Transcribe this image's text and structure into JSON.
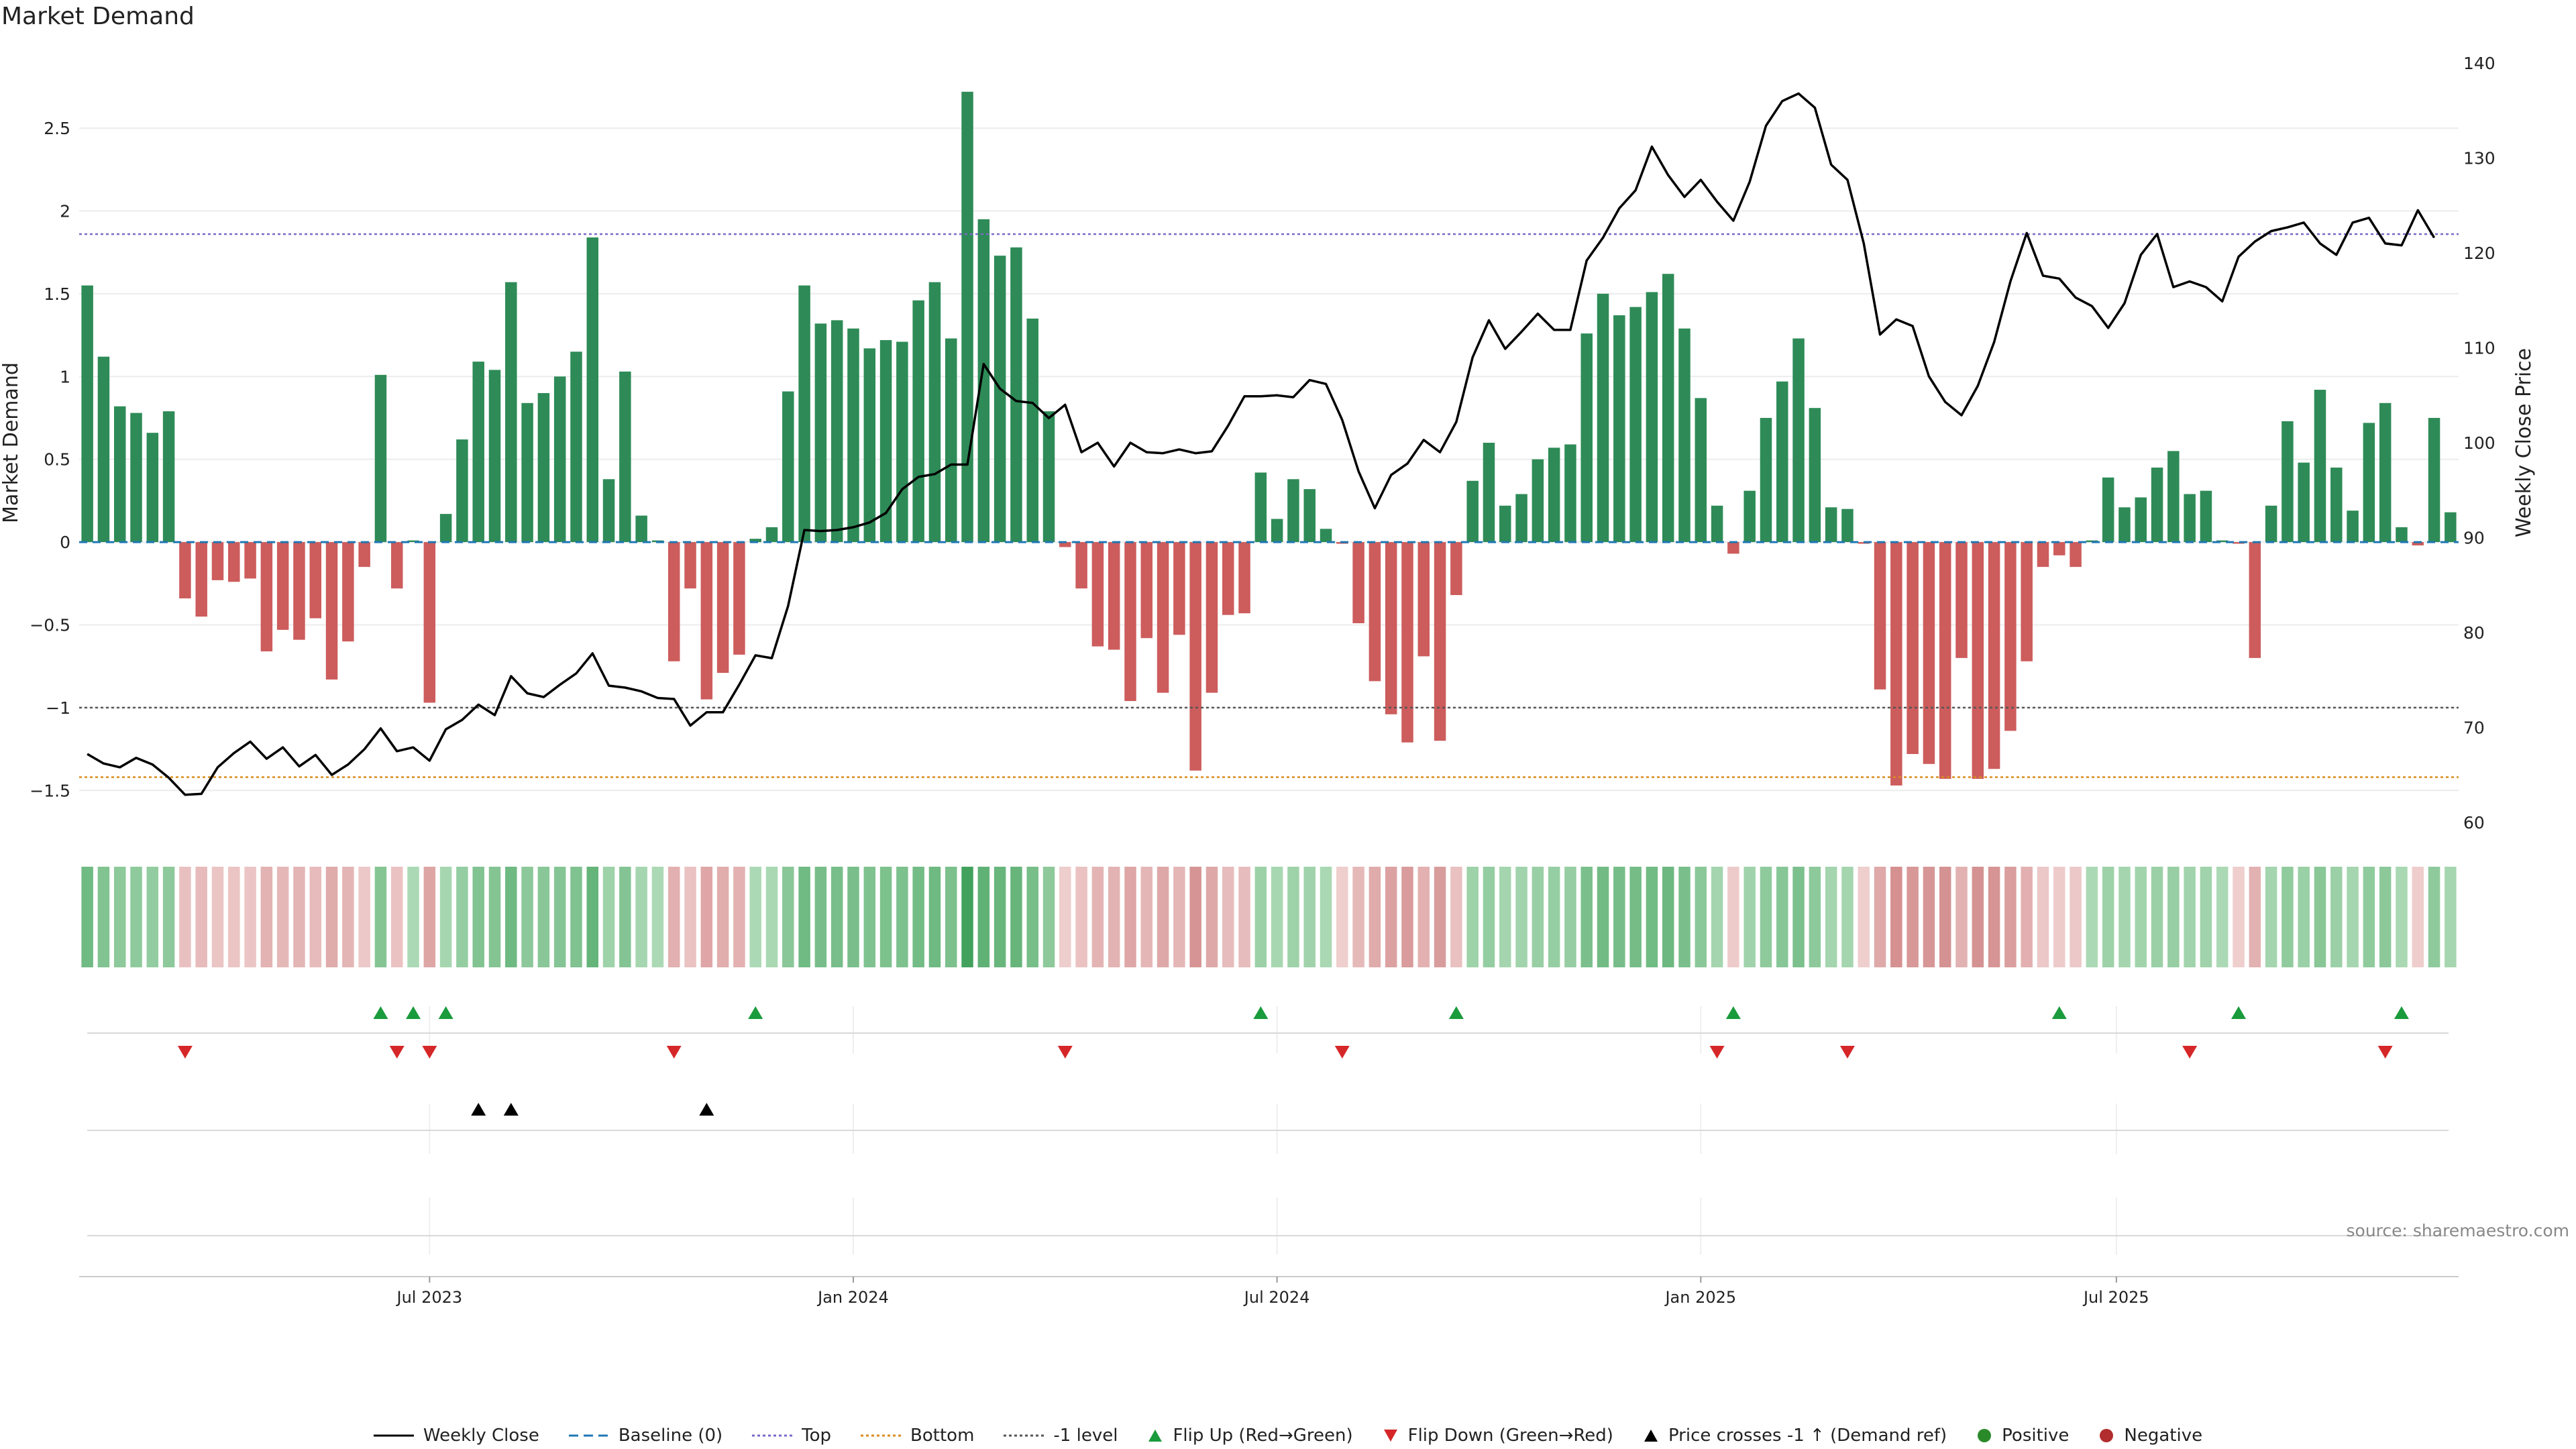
{
  "chart_data": {
    "type": "bar",
    "title": "Market Demand",
    "ylabel": "Market Demand",
    "y2label": "Weekly Close Price",
    "ylim": [
      -1.75,
      2.95
    ],
    "y2lim": [
      59,
      141
    ],
    "yticks": [
      -1.5,
      -1,
      -0.5,
      0,
      0.5,
      1,
      1.5,
      2,
      2.5
    ],
    "yticklabels": [
      "−1.5",
      "−1",
      "−0.5",
      "0",
      "0.5",
      "1",
      "1.5",
      "2",
      "2.5"
    ],
    "y2ticks": [
      60,
      70,
      80,
      90,
      100,
      110,
      120,
      130,
      140
    ],
    "xticklabels": [
      "Jul 2023",
      "Jan 2024",
      "Jul 2024",
      "Jan 2025",
      "Jul 2025"
    ],
    "xtick_positions": [
      21.5,
      47.5,
      73.5,
      99.5,
      125
    ],
    "reference_lines": {
      "top": 1.86,
      "bottom": -1.42,
      "minus_one": -1
    },
    "colors": {
      "positive": "#2e8b57",
      "negative": "#cd5c5c",
      "close": "#000000",
      "top": "#7b68c8",
      "bottom": "#d98c1e",
      "level": "#555555",
      "baseline": "#1f77b4",
      "flip_up": "#1a9b3c",
      "flip_down": "#d62728",
      "cross": "#000000"
    },
    "demand": [
      1.55,
      1.12,
      0.82,
      0.78,
      0.66,
      0.79,
      -0.34,
      -0.45,
      -0.23,
      -0.24,
      -0.22,
      -0.66,
      -0.53,
      -0.59,
      -0.46,
      -0.83,
      -0.6,
      -0.15,
      1.01,
      -0.28,
      0.01,
      -0.97,
      0.17,
      0.62,
      1.09,
      1.04,
      1.57,
      0.84,
      0.9,
      1.0,
      1.15,
      1.84,
      0.38,
      1.03,
      0.16,
      0.01,
      -0.72,
      -0.28,
      -0.95,
      -0.79,
      -0.68,
      0.02,
      0.09,
      0.91,
      1.55,
      1.32,
      1.34,
      1.29,
      1.17,
      1.22,
      1.21,
      1.46,
      1.57,
      1.23,
      2.72,
      1.95,
      1.73,
      1.78,
      1.35,
      0.79,
      -0.03,
      -0.28,
      -0.63,
      -0.65,
      -0.96,
      -0.58,
      -0.91,
      -0.56,
      -1.38,
      -0.91,
      -0.44,
      -0.43,
      0.42,
      0.14,
      0.38,
      0.32,
      0.08,
      -0.01,
      -0.49,
      -0.84,
      -1.04,
      -1.21,
      -0.69,
      -1.2,
      -0.32,
      0.37,
      0.6,
      0.22,
      0.29,
      0.5,
      0.57,
      0.59,
      1.26,
      1.5,
      1.37,
      1.42,
      1.51,
      1.62,
      1.29,
      0.87,
      0.22,
      -0.07,
      0.31,
      0.75,
      0.97,
      1.23,
      0.81,
      0.21,
      0.2,
      -0.01,
      -0.89,
      -1.47,
      -1.28,
      -1.34,
      -1.43,
      -0.7,
      -1.43,
      -1.37,
      -1.14,
      -0.72,
      -0.15,
      -0.08,
      -0.15,
      0.01,
      0.39,
      0.21,
      0.27,
      0.45,
      0.55,
      0.29,
      0.31,
      0.01,
      -0.01,
      -0.7,
      0.22,
      0.73,
      0.48,
      0.92,
      0.45,
      0.19,
      0.72,
      0.84,
      0.09,
      -0.02,
      0.75,
      0.18
    ],
    "close": [
      67.2,
      66.2,
      65.8,
      66.8,
      66.1,
      64.7,
      62.9,
      63.0,
      65.8,
      67.3,
      68.5,
      66.7,
      67.9,
      65.9,
      67.1,
      65.0,
      66.1,
      67.7,
      69.9,
      67.5,
      67.9,
      66.5,
      69.8,
      70.8,
      72.4,
      71.3,
      75.4,
      73.6,
      73.2,
      74.5,
      75.7,
      77.8,
      74.4,
      74.2,
      73.8,
      73.1,
      73.0,
      70.2,
      71.6,
      71.6,
      74.5,
      77.6,
      77.3,
      82.8,
      90.8,
      90.7,
      90.8,
      91.1,
      91.6,
      92.6,
      95.1,
      96.4,
      96.7,
      97.7,
      97.7,
      108.3,
      105.7,
      104.4,
      104.2,
      102.6,
      104.0,
      99.0,
      100.0,
      97.5,
      100.0,
      99.0,
      98.9,
      99.3,
      98.9,
      99.1,
      101.8,
      104.9,
      104.9,
      105.0,
      104.8,
      106.6,
      106.2,
      102.4,
      97.0,
      93.1,
      96.6,
      97.8,
      100.3,
      99.0,
      102.2,
      109.0,
      112.9,
      109.9,
      111.7,
      113.6,
      111.9,
      111.9,
      119.2,
      121.6,
      124.7,
      126.6,
      131.2,
      128.2,
      125.9,
      127.7,
      125.4,
      123.4,
      127.5,
      133.4,
      136.0,
      136.8,
      135.3,
      129.3,
      127.7,
      121.0,
      111.4,
      113.0,
      112.3,
      107.0,
      104.3,
      102.9,
      106.0,
      110.6,
      117.0,
      122.1,
      117.6,
      117.3,
      115.3,
      114.4,
      112.1,
      114.7,
      119.8,
      122.0,
      116.4,
      117.0,
      116.4,
      114.9,
      119.6,
      121.2,
      122.3,
      122.7,
      123.2,
      121.0,
      119.8,
      123.2,
      123.7,
      121.0,
      120.8,
      124.5,
      121.6
    ],
    "heat_strip": [
      1.55,
      1.12,
      0.82,
      0.78,
      0.66,
      0.79,
      -0.34,
      -0.45,
      -0.23,
      -0.24,
      -0.22,
      -0.66,
      -0.53,
      -0.59,
      -0.46,
      -0.83,
      -0.6,
      -0.15,
      1.01,
      -0.28,
      0.01,
      -0.97,
      0.17,
      0.62,
      1.09,
      1.04,
      1.57,
      0.84,
      0.9,
      1.0,
      1.15,
      1.84,
      0.38,
      1.03,
      0.16,
      0.01,
      -0.72,
      -0.28,
      -0.95,
      -0.79,
      -0.68,
      0.02,
      0.09,
      0.91,
      1.55,
      1.32,
      1.34,
      1.29,
      1.17,
      1.22,
      1.21,
      1.46,
      1.57,
      1.23,
      2.72,
      1.95,
      1.73,
      1.78,
      1.35,
      0.79,
      -0.03,
      -0.28,
      -0.63,
      -0.65,
      -0.96,
      -0.58,
      -0.91,
      -0.56,
      -1.38,
      -0.91,
      -0.44,
      -0.43,
      0.42,
      0.14,
      0.38,
      0.32,
      0.08,
      -0.01,
      -0.49,
      -0.84,
      -1.04,
      -1.21,
      -0.69,
      -1.2,
      -0.32,
      0.37,
      0.6,
      0.22,
      0.29,
      0.5,
      0.57,
      0.59,
      1.26,
      1.5,
      1.37,
      1.42,
      1.51,
      1.62,
      1.29,
      0.87,
      0.22,
      -0.07,
      0.31,
      0.75,
      0.97,
      1.23,
      0.81,
      0.21,
      0.2,
      -0.01,
      -0.89,
      -1.47,
      -1.28,
      -1.34,
      -1.43,
      -0.7,
      -1.43,
      -1.37,
      -1.14,
      -0.72,
      -0.15,
      -0.08,
      -0.15,
      0.01,
      0.39,
      0.21,
      0.27,
      0.45,
      0.55,
      0.29,
      0.31,
      0.01,
      -0.01,
      -0.7,
      0.22,
      0.73,
      0.48,
      0.92,
      0.45,
      0.19,
      0.72,
      0.84,
      0.09,
      -0.02,
      0.75,
      0.18
    ],
    "flip_up_weeks": [
      18,
      20,
      22,
      41,
      72,
      84,
      101,
      121,
      132,
      142
    ],
    "flip_down_weeks": [
      6,
      19,
      21,
      36,
      60,
      77,
      100,
      108,
      129,
      141
    ],
    "price_cross_weeks": [
      24,
      26,
      38
    ]
  },
  "legend": [
    {
      "label": "Weekly Close",
      "icon": "line-solid"
    },
    {
      "label": "Baseline (0)",
      "icon": "line-dashed"
    },
    {
      "label": "Top",
      "icon": "line-dotted"
    },
    {
      "label": "Bottom",
      "icon": "line-dotted"
    },
    {
      "label": "-1 level",
      "icon": "line-dotted"
    },
    {
      "label": "Flip Up (Red→Green)",
      "icon": "triangle-up"
    },
    {
      "label": "Flip Down (Green→Red)",
      "icon": "triangle-down"
    },
    {
      "label": "Price crosses -1 ↑ (Demand ref)",
      "icon": "triangle-up"
    },
    {
      "label": "Positive",
      "icon": "dot"
    },
    {
      "label": "Negative",
      "icon": "dot"
    }
  ],
  "source": "source: sharemaestro.com"
}
